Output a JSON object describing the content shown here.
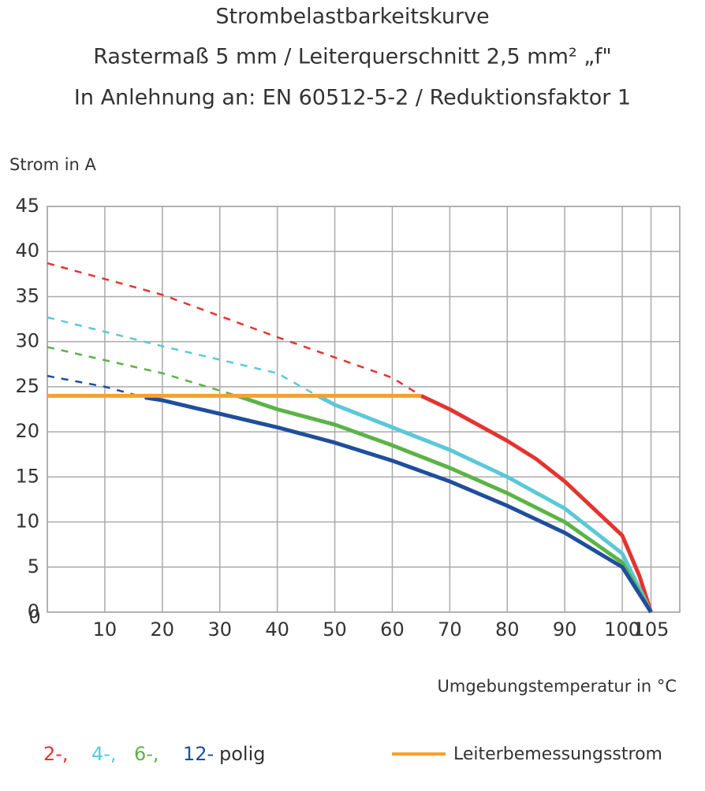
{
  "chart_data": {
    "type": "line",
    "title_lines": [
      "Strombelastbarkeitskurve",
      "Rastermaß 5 mm / Leiterquerschnitt 2,5 mm² „f\"",
      "In Anlehnung an: EN 60512-5-2 / Reduktionsfaktor 1"
    ],
    "y_label": "Strom in A",
    "x_label": "Umgebungstemperatur in °C",
    "xlim": [
      0,
      110
    ],
    "xticks": [
      10,
      20,
      30,
      40,
      50,
      60,
      70,
      80,
      90,
      100,
      105
    ],
    "ylim": [
      0,
      45
    ],
    "yticks": [
      0,
      5,
      10,
      15,
      20,
      25,
      30,
      35,
      40,
      45
    ],
    "grid": true,
    "legend_suffix": "polig",
    "series": [
      {
        "name": "2-,",
        "color": "#e3342f",
        "solid_from": 65,
        "x": [
          0,
          20,
          40,
          60,
          65,
          70,
          80,
          85,
          90,
          100,
          103,
          105
        ],
        "values": [
          38.7,
          35.2,
          30.5,
          26,
          24,
          22.5,
          19,
          17,
          14.5,
          8.5,
          4,
          0
        ]
      },
      {
        "name": "4-,",
        "color": "#5bc8d8",
        "solid_from": 47,
        "x": [
          0,
          20,
          40,
          47,
          50,
          60,
          70,
          80,
          90,
          100,
          105
        ],
        "values": [
          32.7,
          29.5,
          26.5,
          24,
          23,
          20.5,
          18,
          15,
          11.5,
          6.5,
          0
        ]
      },
      {
        "name": "6-,",
        "color": "#5cb347",
        "solid_from": 33,
        "x": [
          0,
          20,
          33,
          40,
          50,
          60,
          70,
          80,
          90,
          100,
          105
        ],
        "values": [
          29.4,
          26.5,
          24,
          22.5,
          20.8,
          18.5,
          16,
          13.2,
          10,
          5.5,
          0
        ]
      },
      {
        "name": "12-",
        "color": "#1f4e9c",
        "solid_from": 17,
        "x": [
          0,
          10,
          17,
          20,
          30,
          40,
          50,
          60,
          70,
          80,
          90,
          100,
          105
        ],
        "values": [
          26.2,
          25,
          23.8,
          23.5,
          22,
          20.5,
          18.8,
          16.8,
          14.5,
          11.8,
          8.8,
          5,
          0
        ]
      },
      {
        "name": "Leiterbemessungsstrom",
        "color": "#f7a02c",
        "x": [
          0,
          65
        ],
        "values": [
          24,
          24
        ]
      }
    ]
  }
}
